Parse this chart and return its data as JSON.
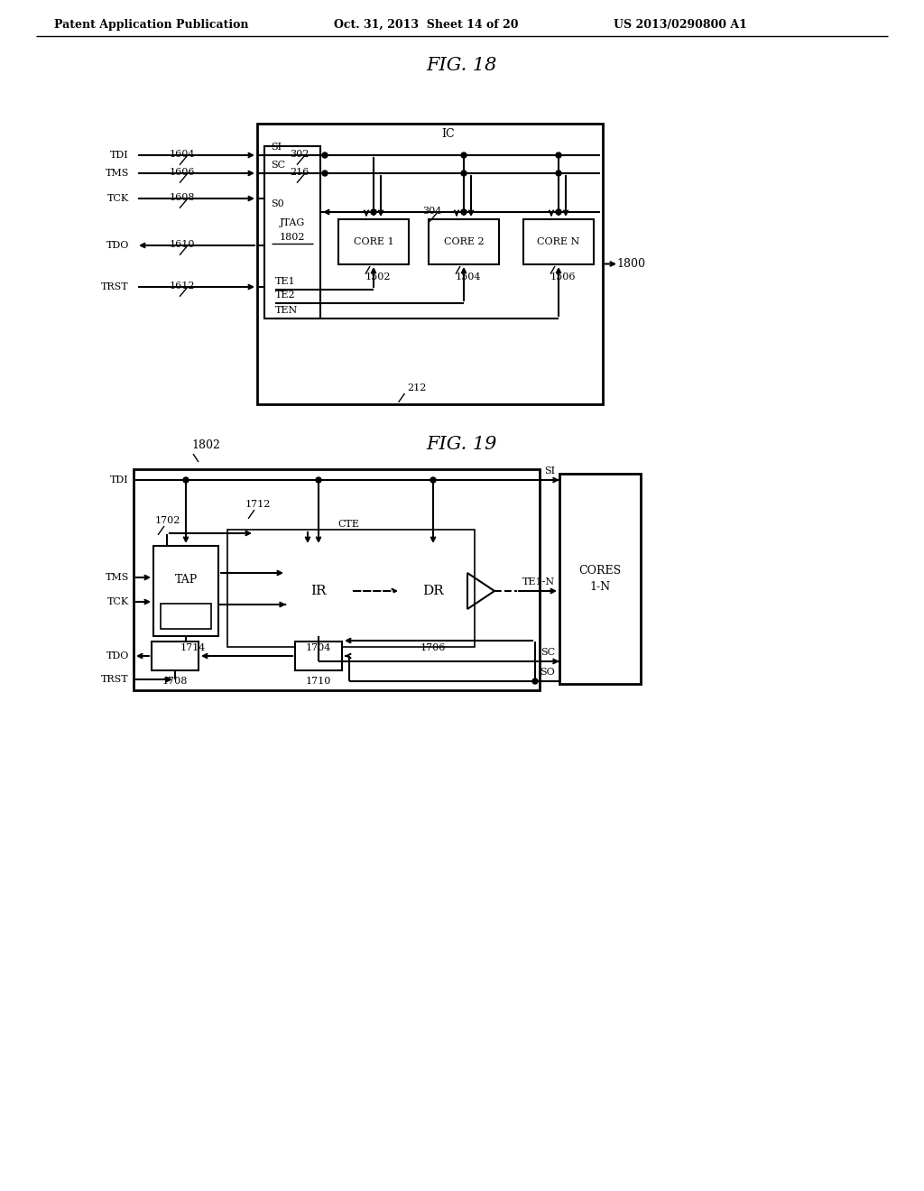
{
  "bg_color": "#ffffff",
  "header_text": "Patent Application Publication",
  "header_date": "Oct. 31, 2013  Sheet 14 of 20",
  "header_patent": "US 2013/0290800 A1",
  "fig18_title": "FIG. 18",
  "fig19_title": "FIG. 19"
}
